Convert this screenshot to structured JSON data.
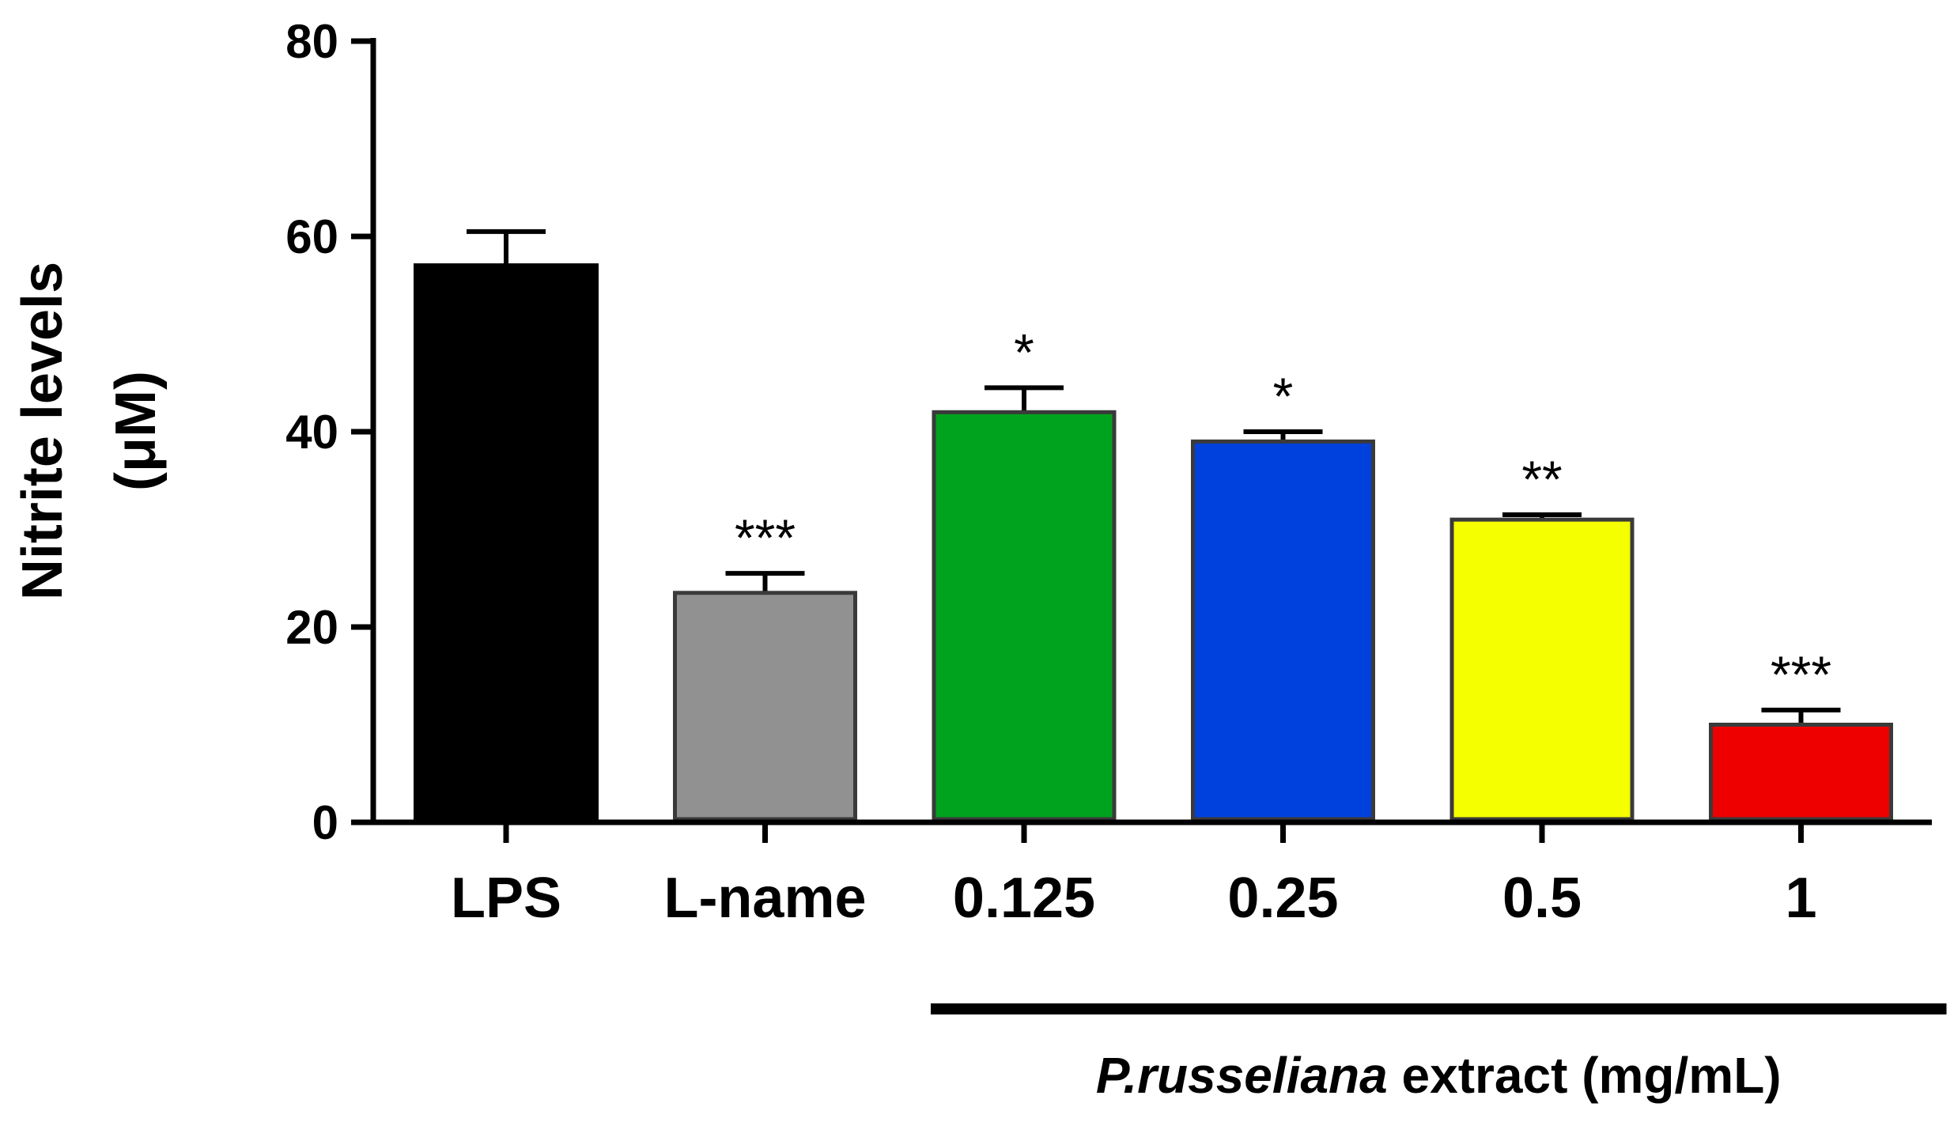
{
  "chart_data": {
    "type": "bar",
    "title": "",
    "xlabel": "",
    "ylabel_line1": "Nitrite levels",
    "ylabel_line2": "(μM)",
    "ylim": [
      0,
      80
    ],
    "yticks": [
      0,
      20,
      40,
      60,
      80
    ],
    "categories": [
      "LPS",
      "L-name",
      "0.125",
      "0.25",
      "0.5",
      "1"
    ],
    "values": [
      57,
      23.5,
      42,
      39,
      31,
      10
    ],
    "errors": [
      3.5,
      2,
      2.5,
      1,
      0.5,
      1.5
    ],
    "significance": [
      "",
      "***",
      "*",
      "*",
      "**",
      "***"
    ],
    "colors": [
      "#000000",
      "#919191",
      "#00a31e",
      "#0040dd",
      "#f5ff00",
      "#ee0000"
    ],
    "group_label": {
      "species": "P.russeliana",
      "rest": " extract (mg/mL)",
      "spans_categories": [
        "0.125",
        "0.25",
        "0.5",
        "1"
      ]
    }
  }
}
